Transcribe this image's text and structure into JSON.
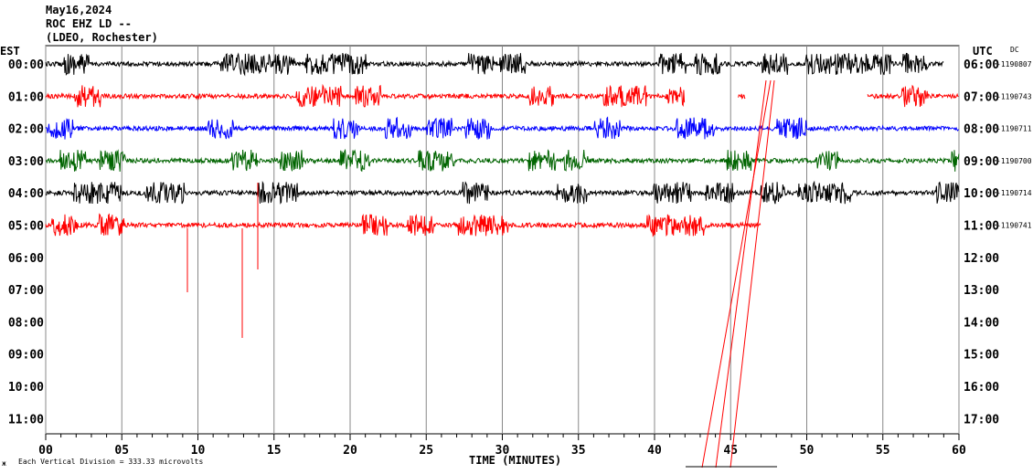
{
  "chart_data": {
    "type": "line",
    "title_lines": [
      "May16,2024",
      "ROC EHZ LD --",
      "(LDEO, Rochester)"
    ],
    "left_axis_title": "EST",
    "right_axis_title": "UTC",
    "dc_title": "DC",
    "xlabel": "TIME (MINUTES)",
    "xlim": [
      0,
      60
    ],
    "x_ticks": [
      "00",
      "05",
      "10",
      "15",
      "20",
      "25",
      "30",
      "35",
      "40",
      "45",
      "50",
      "55",
      "60"
    ],
    "est_labels": [
      "00:00",
      "01:00",
      "02:00",
      "03:00",
      "04:00",
      "05:00",
      "06:00",
      "07:00",
      "08:00",
      "09:00",
      "10:00",
      "11:00"
    ],
    "utc_labels": [
      "06:00",
      "07:00",
      "08:00",
      "09:00",
      "10:00",
      "11:00",
      "12:00",
      "13:00",
      "14:00",
      "15:00",
      "16:00",
      "17:00"
    ],
    "dc_values": [
      "-1190807",
      "-1190743",
      "-1190711",
      "-1190700",
      "-1190714",
      "-1190741"
    ],
    "footer": "Each Vertical Division =  333.33 microvolts",
    "footer_mark": "ж",
    "traces": [
      {
        "color": "#000000",
        "segments": [
          [
            0,
            59
          ]
        ]
      },
      {
        "color": "#ff0000",
        "segments": [
          [
            0,
            42
          ],
          [
            45.5,
            46
          ],
          [
            54,
            60
          ]
        ]
      },
      {
        "color": "#0000ff",
        "segments": [
          [
            0,
            60
          ]
        ]
      },
      {
        "color": "#006400",
        "segments": [
          [
            0,
            60
          ]
        ]
      },
      {
        "color": "#000000",
        "segments": [
          [
            0,
            60
          ]
        ]
      },
      {
        "color": "#ff0000",
        "segments": [
          [
            0,
            47
          ]
        ]
      }
    ]
  }
}
